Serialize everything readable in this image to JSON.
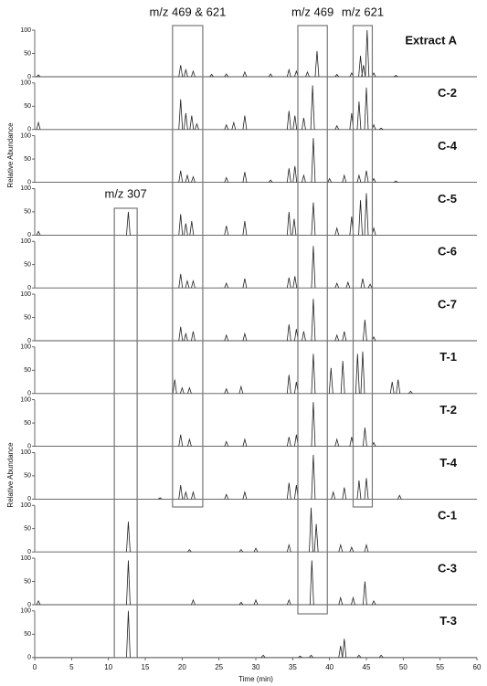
{
  "chart_data": {
    "type": "line",
    "xlabel": "Time (min)",
    "ylabel": "Relative Abundance",
    "xlim": [
      0,
      60
    ],
    "xticks": [
      0,
      5,
      10,
      15,
      20,
      25,
      30,
      35,
      40,
      45,
      50,
      55,
      60
    ],
    "ylim": [
      0,
      100
    ],
    "yticks": [
      0,
      50,
      100
    ],
    "color": "#222222",
    "series": [
      {
        "name": "Extract A",
        "x": [
          0.5,
          19.8,
          20.5,
          21.5,
          24,
          26,
          28.5,
          32,
          34.5,
          35.5,
          37,
          38.3,
          41,
          43,
          44.2,
          44.6,
          45.1,
          46,
          49
        ],
        "values": [
          4,
          25,
          15,
          12,
          5,
          6,
          10,
          6,
          15,
          12,
          10,
          55,
          5,
          8,
          45,
          25,
          100,
          8,
          3
        ]
      },
      {
        "name": "C-2",
        "x": [
          0.5,
          19.8,
          20.5,
          21.3,
          22,
          26,
          27,
          28.5,
          34.5,
          35.3,
          36.5,
          37.7,
          41,
          43,
          44,
          45,
          46,
          47
        ],
        "values": [
          15,
          65,
          35,
          30,
          12,
          10,
          15,
          30,
          40,
          30,
          25,
          95,
          8,
          35,
          60,
          90,
          10,
          3
        ]
      },
      {
        "name": "C-4",
        "x": [
          19.8,
          20.7,
          21.5,
          26,
          28.5,
          32,
          34.5,
          35.3,
          36.5,
          37.8,
          40,
          42,
          44,
          45,
          46,
          49
        ],
        "values": [
          25,
          15,
          12,
          10,
          22,
          5,
          30,
          35,
          15,
          95,
          8,
          15,
          15,
          25,
          8,
          3
        ]
      },
      {
        "name": "C-5",
        "x": [
          0.5,
          12.7,
          19.8,
          20.5,
          21.3,
          26,
          28.5,
          34.5,
          35.2,
          37.8,
          41,
          43,
          44.2,
          45,
          46
        ],
        "values": [
          8,
          50,
          45,
          25,
          30,
          20,
          30,
          50,
          35,
          70,
          15,
          40,
          75,
          90,
          15
        ]
      },
      {
        "name": "C-6",
        "x": [
          19.8,
          20.7,
          21.5,
          26,
          28.5,
          34.5,
          35.3,
          37.8,
          41,
          42.5,
          44.5,
          45.5
        ],
        "values": [
          30,
          15,
          15,
          10,
          20,
          22,
          25,
          90,
          10,
          12,
          20,
          8
        ]
      },
      {
        "name": "C-7",
        "x": [
          19.8,
          20.5,
          21.5,
          26,
          28.5,
          34.5,
          35.5,
          36.5,
          37.8,
          41,
          42,
          44.8,
          46
        ],
        "values": [
          30,
          15,
          20,
          12,
          15,
          35,
          25,
          20,
          90,
          12,
          20,
          45,
          8
        ]
      },
      {
        "name": "T-1",
        "x": [
          19,
          20,
          21,
          26,
          28,
          34.5,
          35.5,
          37.8,
          40.2,
          41.8,
          43.8,
          44.5,
          48.5,
          49.3,
          51
        ],
        "values": [
          30,
          12,
          12,
          10,
          15,
          40,
          25,
          85,
          55,
          70,
          85,
          90,
          25,
          30,
          5
        ]
      },
      {
        "name": "T-2",
        "x": [
          19.8,
          21,
          26,
          28.5,
          34.5,
          35.5,
          37.8,
          41,
          43,
          44.8,
          46
        ],
        "values": [
          25,
          15,
          10,
          15,
          20,
          25,
          95,
          15,
          20,
          40,
          8
        ]
      },
      {
        "name": "T-4",
        "x": [
          17,
          19.8,
          20.5,
          21.5,
          26,
          28.5,
          34.5,
          35.5,
          37.8,
          40.5,
          42,
          44,
          45,
          49.5
        ],
        "values": [
          3,
          30,
          15,
          15,
          10,
          15,
          35,
          30,
          95,
          15,
          25,
          40,
          45,
          8
        ]
      },
      {
        "name": "C-1",
        "x": [
          12.7,
          21,
          28,
          30,
          34.5,
          37.5,
          38.2,
          41.5,
          43,
          45
        ],
        "values": [
          65,
          5,
          5,
          8,
          15,
          95,
          60,
          15,
          10,
          15
        ]
      },
      {
        "name": "C-3",
        "x": [
          0.5,
          12.7,
          21.5,
          28,
          30,
          34.5,
          37.6,
          41.5,
          43.2,
          44.8,
          46
        ],
        "values": [
          8,
          95,
          10,
          5,
          10,
          10,
          95,
          15,
          15,
          50,
          8
        ]
      },
      {
        "name": "T-3",
        "x": [
          12.7,
          31,
          36,
          37.5,
          41.5,
          42,
          44,
          47
        ],
        "values": [
          100,
          5,
          3,
          5,
          25,
          40,
          5,
          5
        ]
      }
    ],
    "annotations": [
      {
        "label": "m/z 469 & 621",
        "xlim": [
          18.7,
          22.8
        ]
      },
      {
        "label": "m/z 469",
        "xlim": [
          35.7,
          39.7
        ]
      },
      {
        "label": "m/z 621",
        "xlim": [
          43.2,
          45.8
        ]
      },
      {
        "label": "m/z 307",
        "xlim": [
          10.8,
          13.9
        ]
      }
    ]
  }
}
